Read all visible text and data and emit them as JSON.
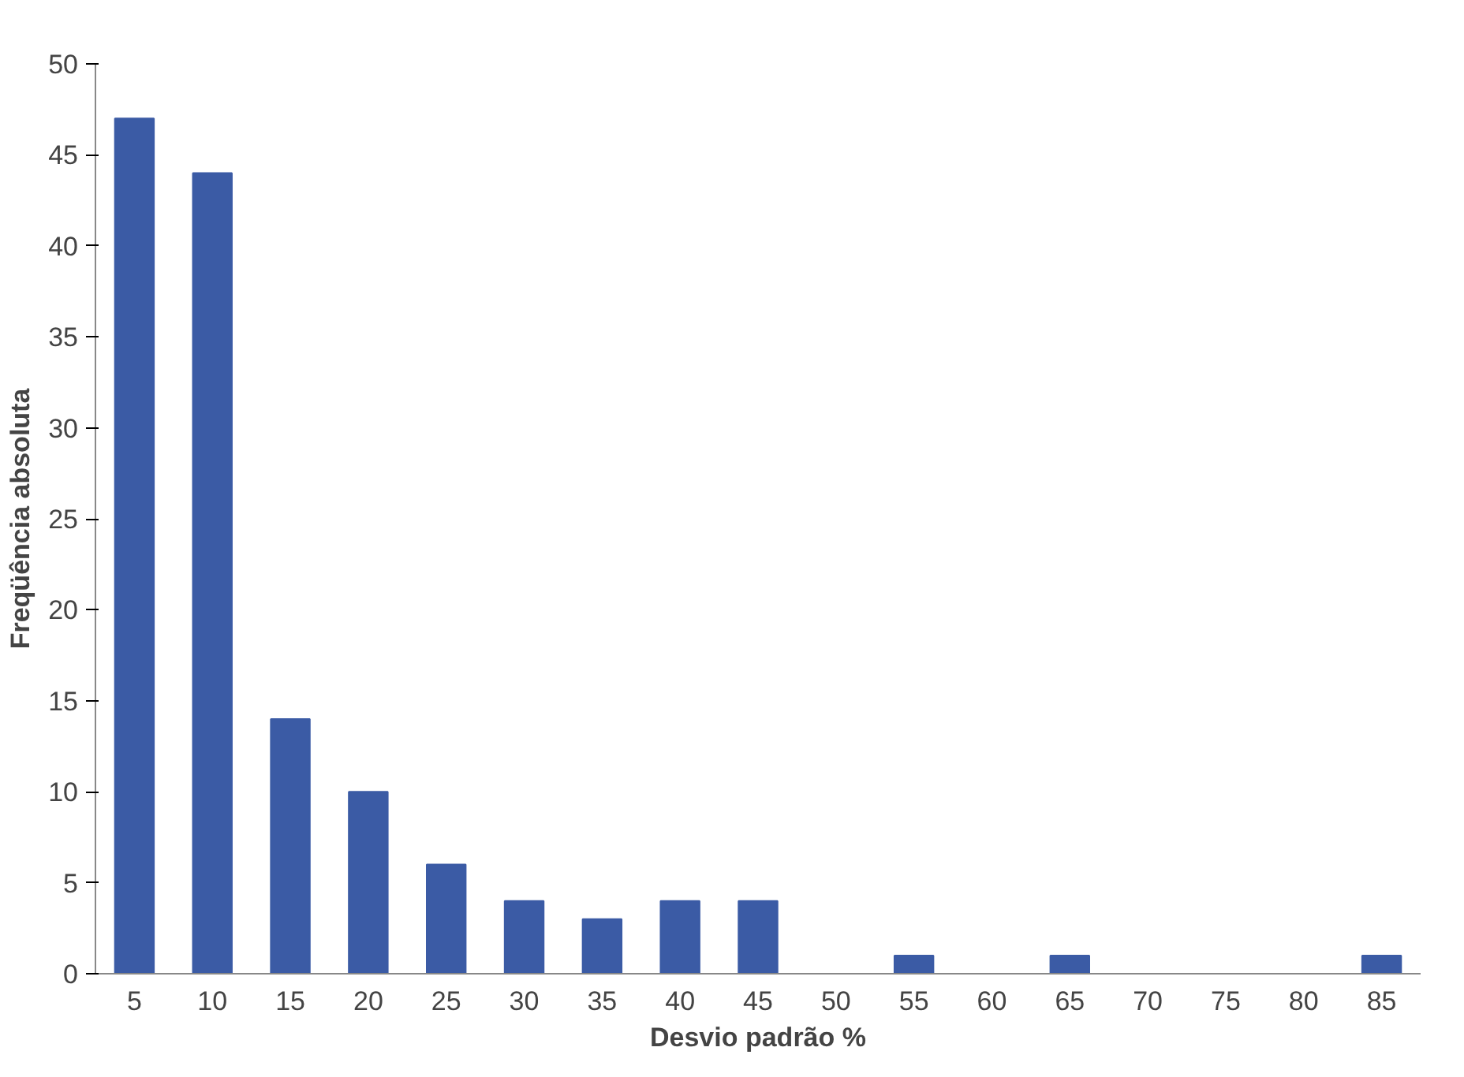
{
  "chart_data": {
    "type": "bar",
    "xlabel": "Desvio padrão %",
    "ylabel": "Freqüência absoluta",
    "categories": [
      "5",
      "10",
      "15",
      "20",
      "25",
      "30",
      "35",
      "40",
      "45",
      "50",
      "55",
      "60",
      "65",
      "70",
      "75",
      "80",
      "85"
    ],
    "values": [
      47,
      44,
      14,
      10,
      6,
      4,
      3,
      4,
      4,
      0,
      1,
      0,
      1,
      0,
      0,
      0,
      1
    ],
    "color": "#3b5ba5",
    "ylim": [
      0,
      50
    ],
    "yticks": [
      0,
      5,
      10,
      15,
      20,
      25,
      30,
      35,
      40,
      45,
      50
    ],
    "grid": false
  }
}
